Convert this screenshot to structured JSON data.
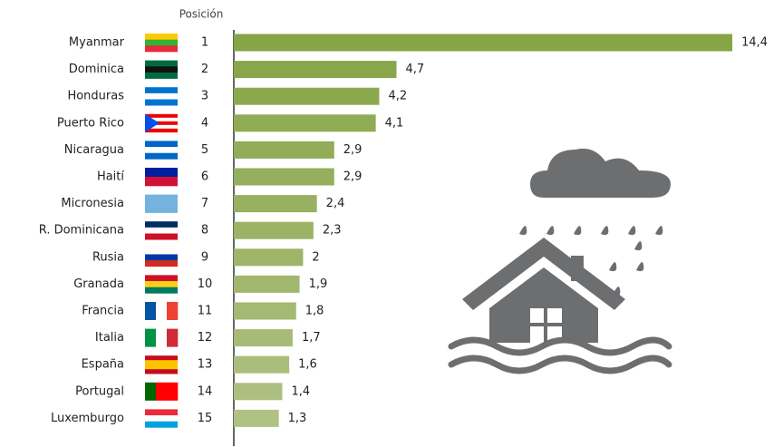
{
  "chart_data": {
    "type": "bar",
    "orientation": "horizontal",
    "position_header": "Posición",
    "categories": [
      "Myanmar",
      "Dominica",
      "Honduras",
      "Puerto Rico",
      "Nicaragua",
      "Haití",
      "Micronesia",
      "R. Dominicana",
      "Rusia",
      "Granada",
      "Francia",
      "Italia",
      "España",
      "Portugal",
      "Luxemburgo"
    ],
    "positions": [
      1,
      2,
      3,
      4,
      5,
      6,
      7,
      8,
      9,
      10,
      11,
      12,
      13,
      14,
      15
    ],
    "values": [
      14.4,
      4.7,
      4.2,
      4.1,
      2.9,
      2.9,
      2.4,
      2.3,
      2,
      1.9,
      1.8,
      1.7,
      1.6,
      1.4,
      1.3
    ],
    "value_labels": [
      "14,4",
      "4,7",
      "4,2",
      "4,1",
      "2,9",
      "2,9",
      "2,4",
      "2,3",
      "2",
      "1,9",
      "1,8",
      "1,7",
      "1,6",
      "1,4",
      "1,3"
    ],
    "colors": [
      "#86a545",
      "#89a74a",
      "#8ca94e",
      "#8fab53",
      "#92ad57",
      "#95af5c",
      "#98b160",
      "#9bb365",
      "#9eb569",
      "#a1b76e",
      "#a4b972",
      "#a7bb77",
      "#aabd7b",
      "#adbf80",
      "#b0c184"
    ],
    "xlim": [
      0,
      15
    ]
  }
}
